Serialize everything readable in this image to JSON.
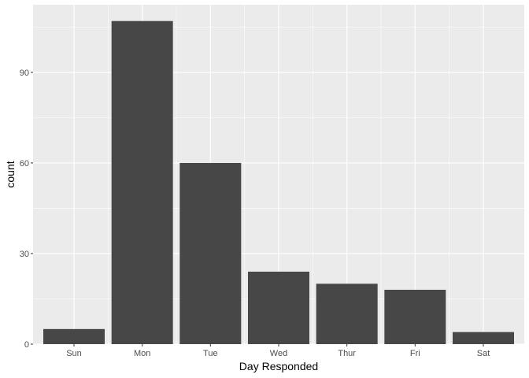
{
  "chart_data": {
    "type": "bar",
    "title": "",
    "xlabel": "Day Responded",
    "ylabel": "count",
    "categories": [
      "Sun",
      "Mon",
      "Tue",
      "Wed",
      "Thur",
      "Fri",
      "Sat"
    ],
    "values": [
      5,
      107,
      60,
      24,
      20,
      18,
      4
    ],
    "ylim": [
      0,
      112.4
    ],
    "yticks": [
      "0",
      "30",
      "60",
      "90"
    ],
    "grid": true,
    "legend": "none",
    "colors": {
      "panel": "#ebebeb",
      "grid": "#ffffff",
      "bar": "#474747",
      "tick_text": "#4d4d4d",
      "tick_mark": "#333333"
    }
  }
}
